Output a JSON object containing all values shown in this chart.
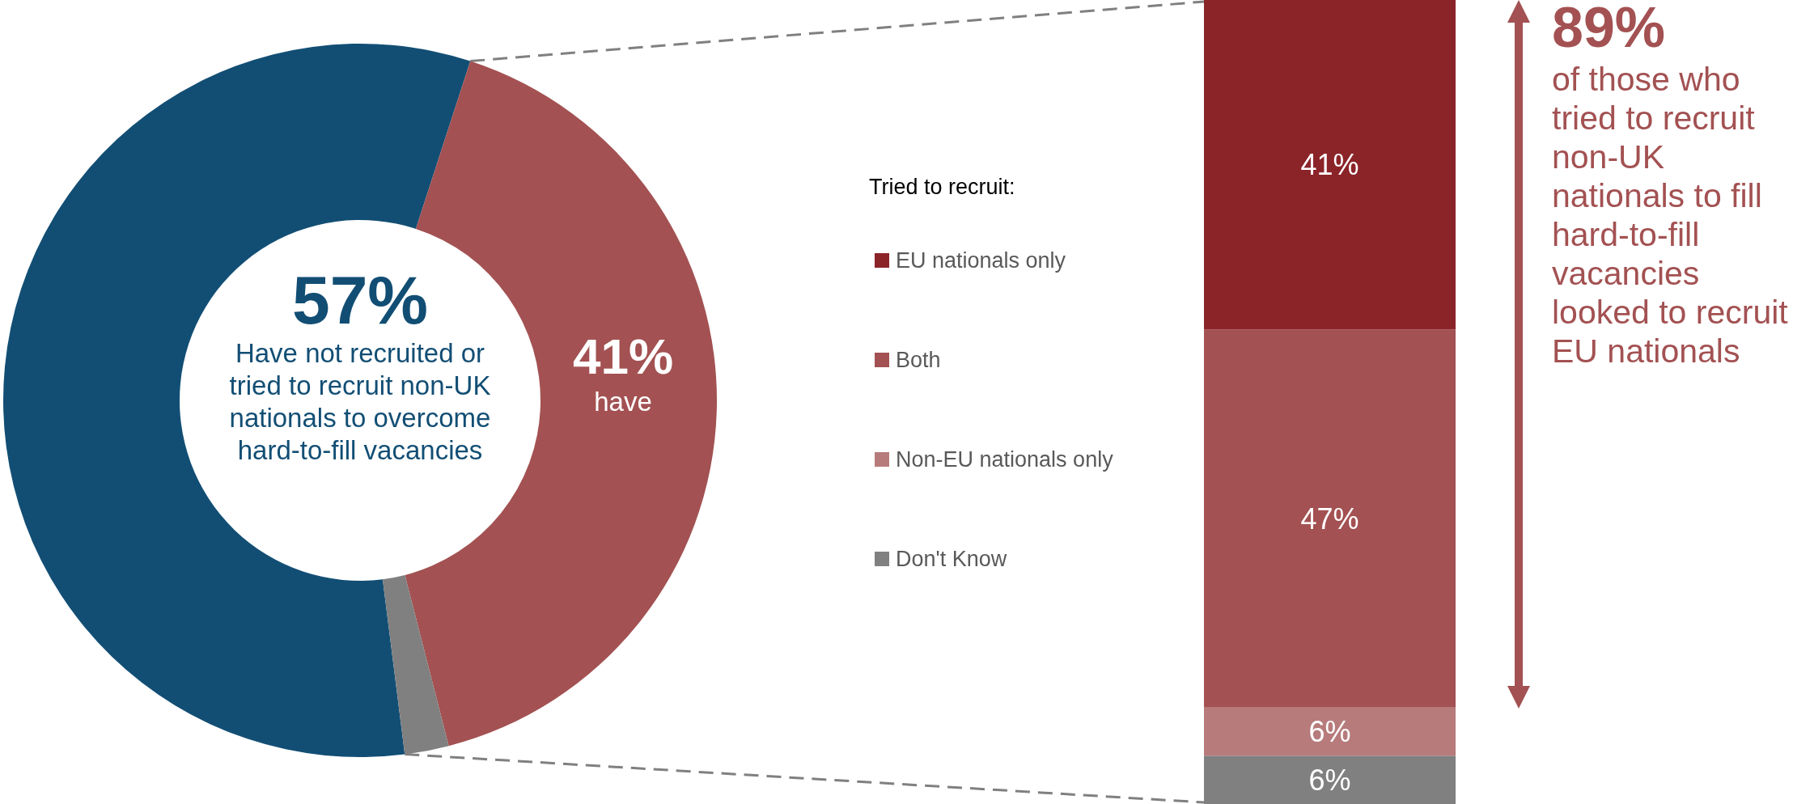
{
  "chart_data": [
    {
      "type": "donut",
      "categories": [
        "Have not recruited or tried to recruit non-UK nationals to overcome hard-to-fill vacancies",
        "have",
        null
      ],
      "values": [
        57,
        41,
        2
      ],
      "colors": [
        "#124e74",
        "#a35152",
        "#808080"
      ],
      "value_labels": [
        "57%",
        "41%",
        null
      ]
    },
    {
      "type": "bar",
      "stacked": true,
      "categories": [
        null
      ],
      "legend": "left",
      "legend_title": "Tried to recruit:",
      "series": [
        {
          "name": "Don't Know",
          "color": "#808080",
          "values": [
            6
          ],
          "value_labels": [
            "6%"
          ]
        },
        {
          "name": "Non-EU nationals only",
          "color": "#b77b7c",
          "values": [
            6
          ],
          "value_labels": [
            "6%"
          ]
        },
        {
          "name": "Both",
          "color": "#a35152",
          "values": [
            47
          ],
          "value_labels": [
            "47%"
          ]
        },
        {
          "name": "EU nationals only",
          "color": "#8b2429",
          "values": [
            41
          ],
          "value_labels": [
            "41%"
          ]
        }
      ],
      "annotations": [
        "89%",
        "of those who tried to recruit non-UK nationals to fill hard-to-fill vacancies looked to recruit EU nationals"
      ]
    }
  ]
}
